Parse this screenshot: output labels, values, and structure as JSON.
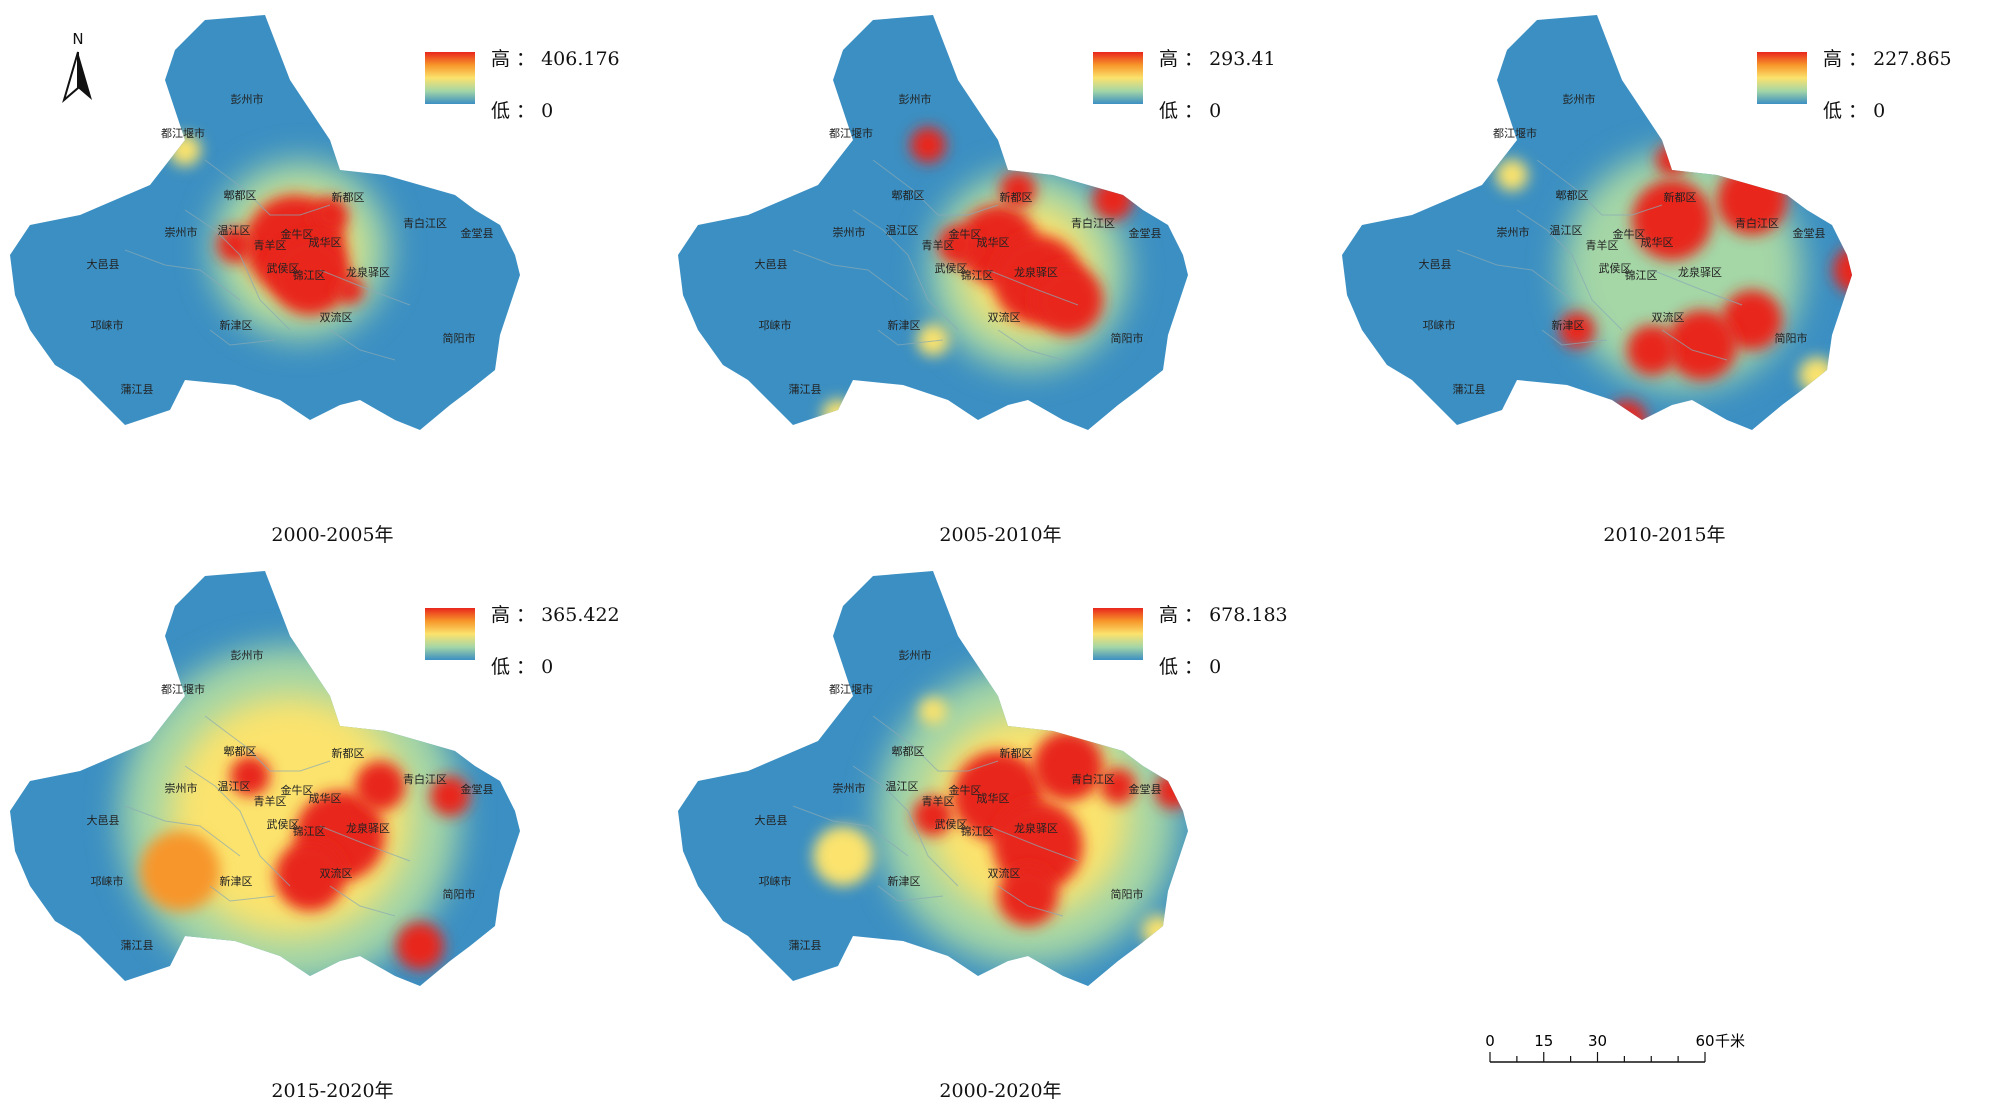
{
  "colors": {
    "base": "#3b8fc2",
    "low_mid": "#a4d6a6",
    "mid": "#fbe36d",
    "high_mid": "#f7962a",
    "high": "#e8261c",
    "boundary": "#8aa9b5"
  },
  "north_label": "N",
  "legend_high_prefix": "高 ：",
  "legend_low_text": "低 ： 0",
  "panels": [
    {
      "period": "2000-2005年",
      "max_value": "406.176"
    },
    {
      "period": "2005-2010年",
      "max_value": "293.41"
    },
    {
      "period": "2010-2015年",
      "max_value": "227.865"
    },
    {
      "period": "2015-2020年",
      "max_value": "365.422"
    },
    {
      "period": "2000-2020年",
      "max_value": "678.183"
    }
  ],
  "places": [
    {
      "name": "彭州市"
    },
    {
      "name": "都江堰市"
    },
    {
      "name": "郫都区"
    },
    {
      "name": "新都区"
    },
    {
      "name": "青白江区"
    },
    {
      "name": "金堂县"
    },
    {
      "name": "崇州市"
    },
    {
      "name": "温江区"
    },
    {
      "name": "金牛区"
    },
    {
      "name": "青羊区"
    },
    {
      "name": "成华区"
    },
    {
      "name": "武侯区"
    },
    {
      "name": "锦江区"
    },
    {
      "name": "龙泉驿区"
    },
    {
      "name": "大邑县"
    },
    {
      "name": "邛崃市"
    },
    {
      "name": "新津区"
    },
    {
      "name": "双流区"
    },
    {
      "name": "简阳市"
    },
    {
      "name": "蒲江县"
    }
  ],
  "scale_bar": {
    "ticks": [
      "0",
      "15",
      "30",
      "60"
    ],
    "unit": "千米"
  }
}
